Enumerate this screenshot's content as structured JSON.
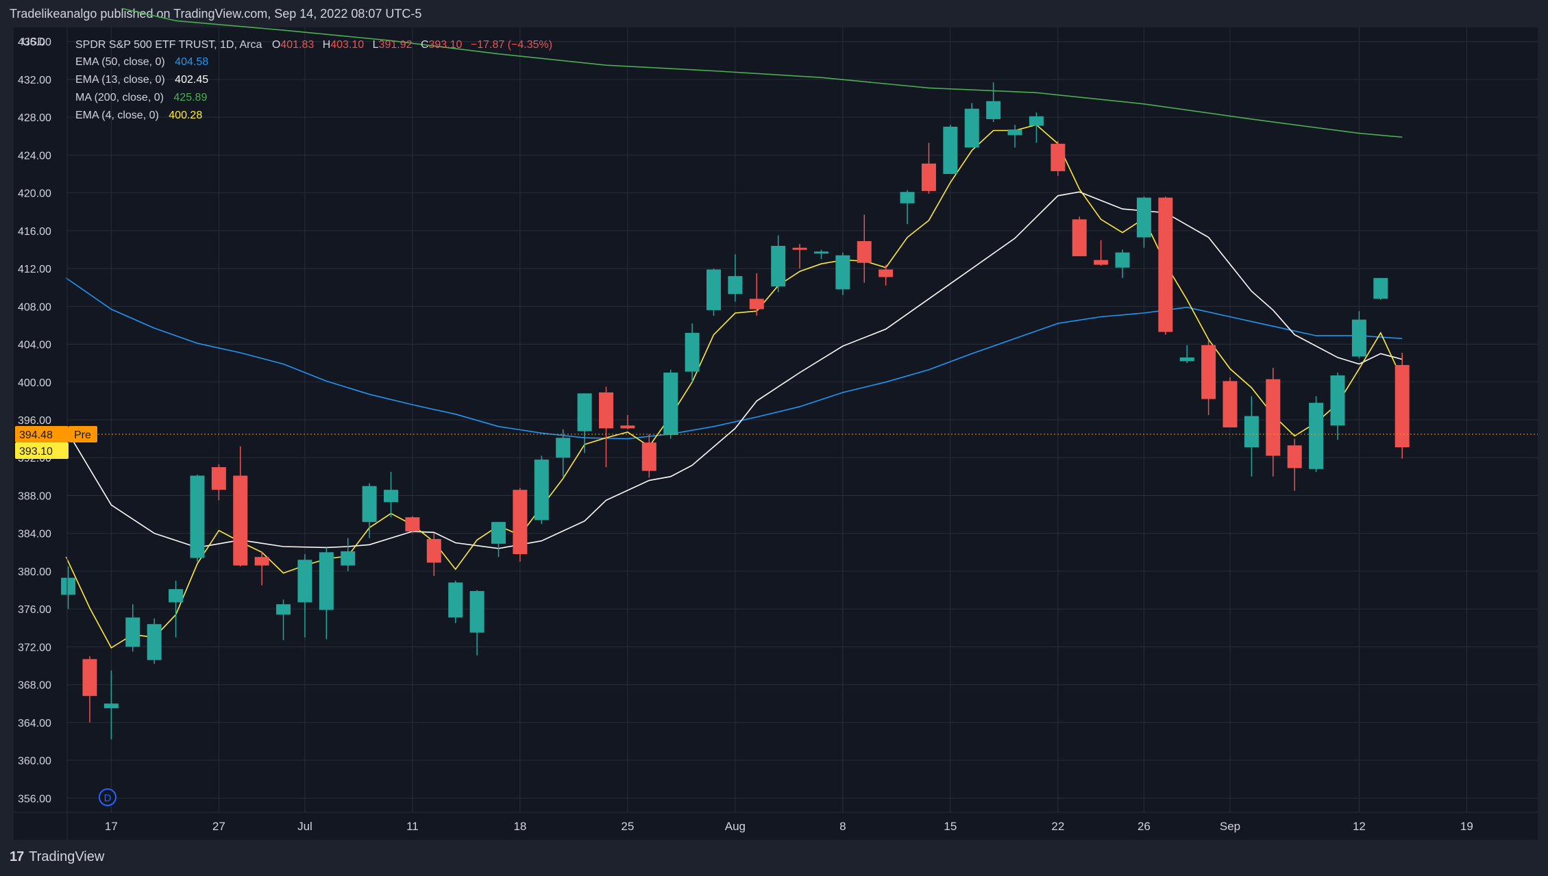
{
  "header": {
    "text": "Tradelikeanalgo published on TradingView.com, Sep 14, 2022 08:07 UTC-5"
  },
  "footer": {
    "brand": "TradingView",
    "logo_glyph": "17"
  },
  "currency": "USD",
  "legend": {
    "title": "SPDR S&P 500 ETF TRUST, 1D, Arca",
    "ohlc": {
      "o_label": "O",
      "o": "401.83",
      "h_label": "H",
      "h": "403.10",
      "l_label": "L",
      "l": "391.92",
      "c_label": "C",
      "c": "393.10",
      "change": "−17.87 (−4.35%)"
    },
    "indicators": [
      {
        "label": "EMA (50, close, 0)",
        "value": "404.58",
        "color": "#2196f3"
      },
      {
        "label": "EMA (13, close, 0)",
        "value": "402.45",
        "color": "#ffffff"
      },
      {
        "label": "MA (200, close, 0)",
        "value": "425.89",
        "color": "#4caf50"
      },
      {
        "label": "EMA (4, close, 0)",
        "value": "400.28",
        "color": "#ffeb3b"
      }
    ]
  },
  "price_tags": {
    "pre_value": "394.48",
    "pre_label": "Pre",
    "last_value": "393.10"
  },
  "marker": {
    "label": "D"
  },
  "colors": {
    "up": "#26a69a",
    "down": "#ef5350",
    "bg": "#131722",
    "grid": "#2a2e39",
    "text": "#d1d4dc",
    "pre": "#ff9800",
    "last": "#ffeb3b"
  },
  "chart_data": {
    "type": "candlestick",
    "title": "SPDR S&P 500 ETF TRUST, 1D, Arca",
    "ylim": [
      354.5,
      437.5
    ],
    "y_ticks": [
      356,
      360,
      364,
      368,
      372,
      376,
      380,
      384,
      388,
      392,
      396,
      400,
      404,
      408,
      412,
      416,
      420,
      424,
      428,
      432,
      436
    ],
    "x_ticks": [
      {
        "label": "17",
        "idx": 2
      },
      {
        "label": "27",
        "idx": 7
      },
      {
        "label": "Jul",
        "idx": 11
      },
      {
        "label": "11",
        "idx": 16
      },
      {
        "label": "18",
        "idx": 21
      },
      {
        "label": "25",
        "idx": 26
      },
      {
        "label": "Aug",
        "idx": 31
      },
      {
        "label": "8",
        "idx": 36
      },
      {
        "label": "15",
        "idx": 41
      },
      {
        "label": "22",
        "idx": 46
      },
      {
        "label": "26",
        "idx": 50
      },
      {
        "label": "Sep",
        "idx": 54
      },
      {
        "label": "12",
        "idx": 60
      },
      {
        "label": "19",
        "idx": 65
      }
    ],
    "x_range": [
      -0.05,
      68.3
    ],
    "candles": [
      {
        "o": 377.5,
        "h": 380.5,
        "l": 376.0,
        "c": 379.3
      },
      {
        "o": 370.7,
        "h": 371.0,
        "l": 364.0,
        "c": 366.8
      },
      {
        "o": 365.5,
        "h": 369.5,
        "l": 362.2,
        "c": 366.0
      },
      {
        "o": 372.0,
        "h": 376.5,
        "l": 371.5,
        "c": 375.1
      },
      {
        "o": 370.6,
        "h": 375.0,
        "l": 370.2,
        "c": 374.4
      },
      {
        "o": 376.7,
        "h": 379.0,
        "l": 373.0,
        "c": 378.1
      },
      {
        "o": 381.4,
        "h": 390.2,
        "l": 381.0,
        "c": 390.1
      },
      {
        "o": 391.0,
        "h": 391.3,
        "l": 387.5,
        "c": 388.6
      },
      {
        "o": 390.1,
        "h": 393.2,
        "l": 380.5,
        "c": 380.6
      },
      {
        "o": 381.5,
        "h": 382.0,
        "l": 378.5,
        "c": 380.6
      },
      {
        "o": 375.4,
        "h": 377.0,
        "l": 372.7,
        "c": 376.5
      },
      {
        "o": 376.7,
        "h": 381.8,
        "l": 373.0,
        "c": 381.2
      },
      {
        "o": 375.9,
        "h": 382.5,
        "l": 372.8,
        "c": 382.0
      },
      {
        "o": 380.6,
        "h": 383.5,
        "l": 380.0,
        "c": 382.1
      },
      {
        "o": 385.2,
        "h": 389.3,
        "l": 383.5,
        "c": 389.0
      },
      {
        "o": 387.3,
        "h": 390.5,
        "l": 385.7,
        "c": 388.6
      },
      {
        "o": 385.7,
        "h": 385.8,
        "l": 384.0,
        "c": 384.2
      },
      {
        "o": 383.4,
        "h": 384.0,
        "l": 379.5,
        "c": 380.9
      },
      {
        "o": 375.1,
        "h": 379.0,
        "l": 374.5,
        "c": 378.8
      },
      {
        "o": 373.5,
        "h": 378.0,
        "l": 371.1,
        "c": 377.9
      },
      {
        "o": 382.9,
        "h": 385.2,
        "l": 381.5,
        "c": 385.2
      },
      {
        "o": 388.6,
        "h": 388.8,
        "l": 381.0,
        "c": 381.8
      },
      {
        "o": 385.4,
        "h": 392.2,
        "l": 385.0,
        "c": 391.8
      },
      {
        "o": 392.0,
        "h": 395.0,
        "l": 390.0,
        "c": 394.1
      },
      {
        "o": 394.8,
        "h": 398.8,
        "l": 392.5,
        "c": 398.8
      },
      {
        "o": 398.9,
        "h": 399.5,
        "l": 391.0,
        "c": 395.1
      },
      {
        "o": 395.4,
        "h": 396.5,
        "l": 395.0,
        "c": 395.1
      },
      {
        "o": 393.6,
        "h": 394.5,
        "l": 389.9,
        "c": 390.6
      },
      {
        "o": 394.4,
        "h": 401.3,
        "l": 394.0,
        "c": 401.0
      },
      {
        "o": 401.1,
        "h": 406.2,
        "l": 400.0,
        "c": 405.2
      },
      {
        "o": 407.6,
        "h": 412.0,
        "l": 407.0,
        "c": 411.9
      },
      {
        "o": 409.3,
        "h": 413.5,
        "l": 408.5,
        "c": 411.2
      },
      {
        "o": 408.8,
        "h": 411.5,
        "l": 407.0,
        "c": 407.7
      },
      {
        "o": 410.1,
        "h": 415.5,
        "l": 409.5,
        "c": 414.4
      },
      {
        "o": 414.2,
        "h": 414.6,
        "l": 412.0,
        "c": 414.0
      },
      {
        "o": 413.8,
        "h": 414.0,
        "l": 413.0,
        "c": 413.8
      },
      {
        "o": 409.8,
        "h": 413.7,
        "l": 409.2,
        "c": 413.4
      },
      {
        "o": 414.9,
        "h": 417.7,
        "l": 410.5,
        "c": 412.6
      },
      {
        "o": 411.9,
        "h": 412.4,
        "l": 410.2,
        "c": 411.1
      },
      {
        "o": 418.9,
        "h": 420.3,
        "l": 416.7,
        "c": 420.1
      },
      {
        "o": 423.1,
        "h": 425.3,
        "l": 419.9,
        "c": 420.2
      },
      {
        "o": 422.0,
        "h": 427.2,
        "l": 422.0,
        "c": 427.0
      },
      {
        "o": 424.8,
        "h": 429.5,
        "l": 424.8,
        "c": 428.9
      },
      {
        "o": 427.8,
        "h": 431.7,
        "l": 427.5,
        "c": 429.7
      },
      {
        "o": 426.1,
        "h": 427.2,
        "l": 424.8,
        "c": 426.7
      },
      {
        "o": 427.1,
        "h": 428.5,
        "l": 425.3,
        "c": 428.1
      },
      {
        "o": 425.2,
        "h": 425.5,
        "l": 421.8,
        "c": 422.3
      },
      {
        "o": 417.2,
        "h": 417.5,
        "l": 413.5,
        "c": 413.3
      },
      {
        "o": 412.9,
        "h": 415.0,
        "l": 412.3,
        "c": 412.4
      },
      {
        "o": 412.1,
        "h": 414.0,
        "l": 411.0,
        "c": 413.7
      },
      {
        "o": 415.3,
        "h": 419.6,
        "l": 414.2,
        "c": 419.5
      },
      {
        "o": 419.5,
        "h": 419.6,
        "l": 405.0,
        "c": 405.3
      },
      {
        "o": 402.2,
        "h": 403.9,
        "l": 402.0,
        "c": 402.6
      },
      {
        "o": 403.9,
        "h": 404.4,
        "l": 396.5,
        "c": 398.2
      },
      {
        "o": 400.1,
        "h": 400.5,
        "l": 395.8,
        "c": 395.2
      },
      {
        "o": 393.1,
        "h": 398.5,
        "l": 390.0,
        "c": 396.4
      },
      {
        "o": 400.3,
        "h": 401.5,
        "l": 390.0,
        "c": 392.2
      },
      {
        "o": 393.3,
        "h": 394.0,
        "l": 388.5,
        "c": 390.9
      },
      {
        "o": 390.8,
        "h": 398.5,
        "l": 390.5,
        "c": 397.8
      },
      {
        "o": 395.4,
        "h": 401.0,
        "l": 393.9,
        "c": 400.7
      },
      {
        "o": 402.7,
        "h": 407.5,
        "l": 402.5,
        "c": 406.6
      },
      {
        "o": 408.8,
        "h": 411.0,
        "l": 408.7,
        "c": 411.0
      },
      {
        "o": 401.8,
        "h": 403.1,
        "l": 391.9,
        "c": 393.1
      }
    ],
    "series": [
      {
        "name": "EMA (50, close, 0)",
        "color": "#2196f3",
        "points": [
          [
            -0.1,
            411.0
          ],
          [
            2,
            407.7
          ],
          [
            4,
            405.7
          ],
          [
            6,
            404.1
          ],
          [
            8,
            403.1
          ],
          [
            10,
            401.9
          ],
          [
            12,
            400.1
          ],
          [
            14,
            398.7
          ],
          [
            16,
            397.6
          ],
          [
            18,
            396.6
          ],
          [
            20,
            395.3
          ],
          [
            22,
            394.6
          ],
          [
            24,
            394.1
          ],
          [
            26,
            394.0
          ],
          [
            28,
            394.5
          ],
          [
            30,
            395.3
          ],
          [
            32,
            396.3
          ],
          [
            34,
            397.4
          ],
          [
            36,
            398.9
          ],
          [
            38,
            400.0
          ],
          [
            40,
            401.3
          ],
          [
            42,
            403.0
          ],
          [
            44,
            404.6
          ],
          [
            46,
            406.2
          ],
          [
            48,
            406.9
          ],
          [
            50,
            407.3
          ],
          [
            52,
            407.9
          ],
          [
            54,
            406.9
          ],
          [
            56,
            405.9
          ],
          [
            58,
            404.9
          ],
          [
            60,
            404.9
          ],
          [
            62,
            404.6
          ]
        ]
      },
      {
        "name": "EMA (13, close, 0)",
        "color": "#ffffff",
        "points": [
          [
            -0.1,
            395.0
          ],
          [
            2,
            387.0
          ],
          [
            4,
            384.0
          ],
          [
            6,
            382.5
          ],
          [
            7,
            382.9
          ],
          [
            8,
            383.3
          ],
          [
            10,
            382.6
          ],
          [
            12,
            382.5
          ],
          [
            13,
            382.6
          ],
          [
            14,
            382.8
          ],
          [
            16,
            384.2
          ],
          [
            17,
            384.1
          ],
          [
            18,
            383.0
          ],
          [
            20,
            382.4
          ],
          [
            22,
            383.2
          ],
          [
            24,
            385.3
          ],
          [
            25,
            387.5
          ],
          [
            27,
            389.6
          ],
          [
            28,
            390.0
          ],
          [
            29,
            391.2
          ],
          [
            31,
            395.1
          ],
          [
            32,
            398.0
          ],
          [
            34,
            401.0
          ],
          [
            36,
            403.8
          ],
          [
            38,
            405.6
          ],
          [
            40,
            408.8
          ],
          [
            42,
            412.0
          ],
          [
            44,
            415.2
          ],
          [
            46,
            419.7
          ],
          [
            47,
            420.1
          ],
          [
            49,
            418.3
          ],
          [
            51,
            417.9
          ],
          [
            53,
            415.3
          ],
          [
            55,
            409.6
          ],
          [
            56,
            407.6
          ],
          [
            57,
            405.0
          ],
          [
            59,
            402.6
          ],
          [
            60,
            401.9
          ],
          [
            61,
            403.0
          ],
          [
            62,
            402.4
          ]
        ]
      },
      {
        "name": "MA (200, close, 0)",
        "color": "#4caf50",
        "points": [
          [
            2.5,
            439.5
          ],
          [
            5,
            438.2
          ],
          [
            10,
            437.2
          ],
          [
            15,
            436.1
          ],
          [
            20,
            434.7
          ],
          [
            25,
            433.5
          ],
          [
            30,
            432.9
          ],
          [
            35,
            432.2
          ],
          [
            40,
            431.1
          ],
          [
            45,
            430.6
          ],
          [
            50,
            429.4
          ],
          [
            55,
            427.8
          ],
          [
            60,
            426.3
          ],
          [
            62,
            425.9
          ]
        ]
      },
      {
        "name": "EMA (4, close, 0)",
        "color": "#ffeb3b",
        "points": [
          [
            -0.1,
            381.5
          ],
          [
            1,
            376.1
          ],
          [
            2,
            371.9
          ],
          [
            3,
            373.3
          ],
          [
            4,
            373.0
          ],
          [
            5,
            375.4
          ],
          [
            6,
            380.8
          ],
          [
            7,
            384.3
          ],
          [
            8,
            383.1
          ],
          [
            9,
            382.0
          ],
          [
            10,
            379.8
          ],
          [
            11,
            380.6
          ],
          [
            12,
            381.3
          ],
          [
            13,
            381.6
          ],
          [
            14,
            384.6
          ],
          [
            15,
            386.1
          ],
          [
            16,
            384.9
          ],
          [
            17,
            383.1
          ],
          [
            18,
            380.2
          ],
          [
            19,
            383.3
          ],
          [
            20,
            384.8
          ],
          [
            21,
            383.8
          ],
          [
            22,
            386.8
          ],
          [
            23,
            389.8
          ],
          [
            24,
            393.4
          ],
          [
            25,
            394.1
          ],
          [
            26,
            394.7
          ],
          [
            27,
            393.2
          ],
          [
            28,
            396.4
          ],
          [
            29,
            400.0
          ],
          [
            30,
            405.0
          ],
          [
            31,
            407.3
          ],
          [
            32,
            407.5
          ],
          [
            33,
            410.2
          ],
          [
            34,
            411.7
          ],
          [
            35,
            412.5
          ],
          [
            36,
            412.9
          ],
          [
            37,
            412.8
          ],
          [
            38,
            412.1
          ],
          [
            39,
            415.3
          ],
          [
            40,
            417.1
          ],
          [
            41,
            421.1
          ],
          [
            42,
            424.5
          ],
          [
            43,
            426.6
          ],
          [
            44,
            426.6
          ],
          [
            45,
            427.2
          ],
          [
            46,
            425.2
          ],
          [
            47,
            420.4
          ],
          [
            48,
            417.2
          ],
          [
            49,
            415.8
          ],
          [
            50,
            417.3
          ],
          [
            51,
            412.5
          ],
          [
            52,
            408.7
          ],
          [
            53,
            404.5
          ],
          [
            54,
            401.4
          ],
          [
            55,
            399.4
          ],
          [
            56,
            396.5
          ],
          [
            57,
            394.3
          ],
          [
            58,
            395.7
          ],
          [
            59,
            397.7
          ],
          [
            60,
            401.4
          ],
          [
            61,
            405.2
          ],
          [
            62,
            400.3
          ]
        ]
      }
    ]
  }
}
